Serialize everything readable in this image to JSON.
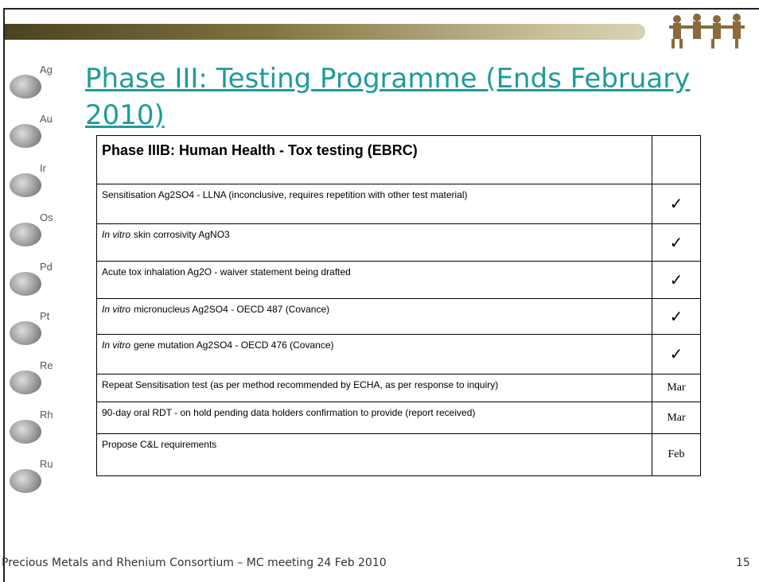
{
  "title": "Phase III: Testing Programme (Ends February 2010)",
  "sidebar": [
    "Ag",
    "Au",
    "Ir",
    "Os",
    "Pd",
    "Pt",
    "Re",
    "Rh",
    "Ru"
  ],
  "table": {
    "heading": "Phase IIIB: Human Health - Tox testing (EBRC)",
    "rows": [
      {
        "task": "Sensitisation Ag2SO4 - LLNA (inconclusive, requires repetition with other test material)",
        "status": "✓"
      },
      {
        "emphasis": "In vitro",
        "task": "skin corrosivity AgNO3",
        "status": "✓"
      },
      {
        "task": "Acute tox inhalation Ag2O - waiver statement being drafted",
        "status": "✓"
      },
      {
        "emphasis": "In vitro",
        "task": "micronucleus Ag2SO4 - OECD 487 (Covance)",
        "status": "✓"
      },
      {
        "emphasis": "In vitro",
        "task": "gene mutation Ag2SO4 - OECD 476 (Covance)",
        "status": "✓"
      },
      {
        "task": "Repeat Sensitisation test (as per method recommended by ECHA, as per response to inquiry)",
        "status": "Mar"
      },
      {
        "task": "90-day oral RDT - on hold pending data holders confirmation to provide (report received)",
        "status": "Mar"
      },
      {
        "task": "Propose C&L requirements",
        "status": "Feb"
      }
    ]
  },
  "footer": "Precious Metals and Rhenium Consortium – MC meeting 24 Feb 2010",
  "page_number": "15"
}
